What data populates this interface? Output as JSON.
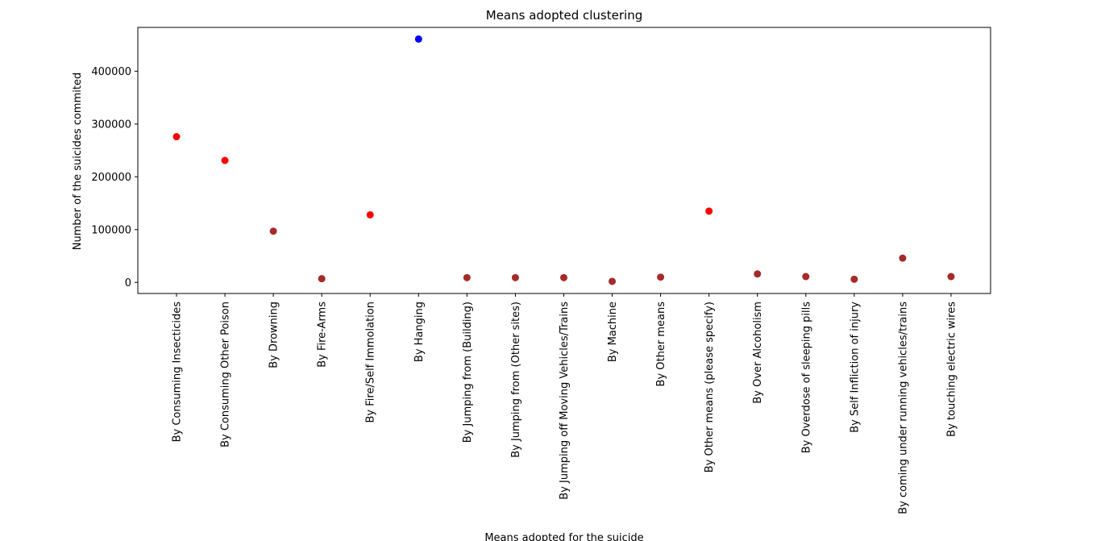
{
  "chart_data": {
    "type": "scatter",
    "title": "Means adopted clustering",
    "xlabel": "Means adopted for the suicide",
    "ylabel": "Number of the suicides  commited",
    "categories": [
      "By Consuming Insecticides",
      "By Consuming Other Poison",
      "By Drowning",
      "By Fire-Arms",
      "By Fire/Self Immolation",
      "By Hanging",
      "By Jumping from (Building)",
      "By Jumping from (Other sites)",
      "By Jumping off Moving Vehicles/Trains",
      "By Machine",
      "By Other means",
      "By Other means (please specify)",
      "By Over Alcoholism",
      "By Overdose of sleeping pills",
      "By Self Infliction of injury",
      "By coming under running vehicles/trains",
      "By touching electric wires"
    ],
    "values": [
      276000,
      231000,
      97000,
      7000,
      128000,
      461000,
      9000,
      9000,
      9000,
      2000,
      10000,
      135000,
      16000,
      11000,
      6000,
      46000,
      11000
    ],
    "point_colors": [
      "#ff0000",
      "#ff0000",
      "#a52a2a",
      "#a52a2a",
      "#ff0000",
      "#0000ff",
      "#a52a2a",
      "#a52a2a",
      "#a52a2a",
      "#a52a2a",
      "#a52a2a",
      "#ff0000",
      "#a52a2a",
      "#a52a2a",
      "#a52a2a",
      "#a52a2a",
      "#a52a2a"
    ],
    "yticks": [
      0,
      100000,
      200000,
      300000,
      400000
    ],
    "ytick_labels": [
      "0",
      "100000",
      "200000",
      "300000",
      "400000"
    ],
    "ylim": [
      -21000,
      483000
    ],
    "grid": false,
    "legend": "none"
  }
}
